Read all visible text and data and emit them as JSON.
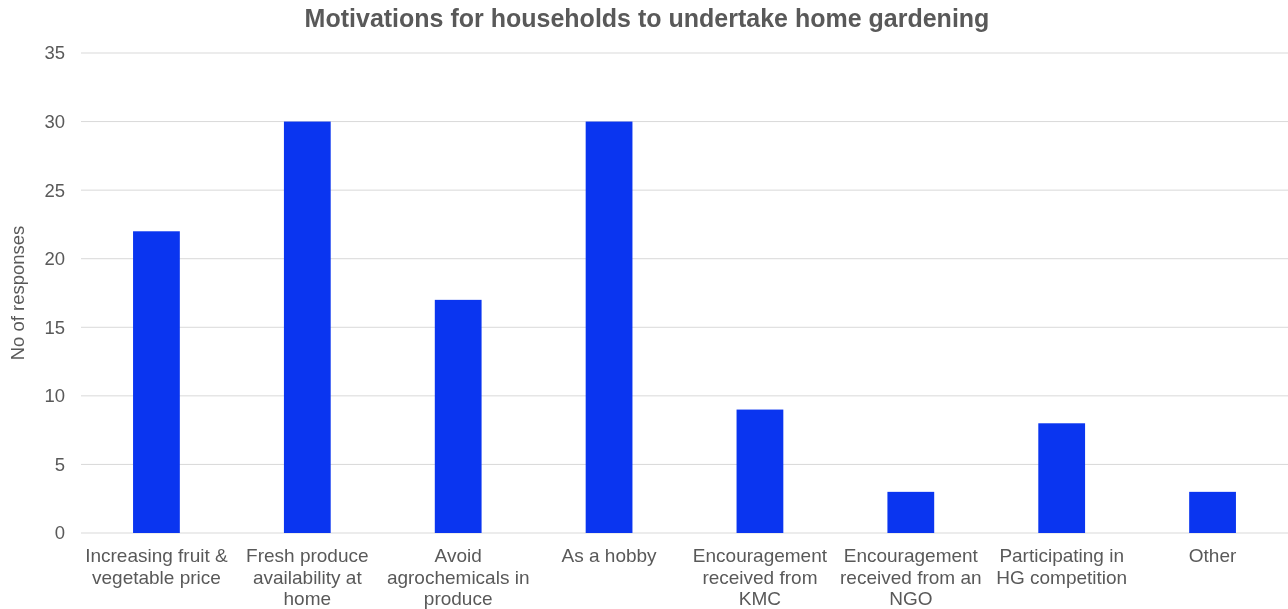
{
  "chart_data": {
    "type": "bar",
    "title": "Motivations for households to undertake home gardening",
    "ylabel": "No of responses",
    "categories": [
      "Increasing fruit & vegetable price",
      "Fresh produce availability at home",
      "Avoid agrochemicals in produce",
      "As a hobby",
      "Encouragement received from KMC",
      "Encouragement received from an NGO",
      "Participating in HG competition",
      "Other"
    ],
    "values": [
      22,
      30,
      17,
      30,
      9,
      3,
      8,
      3
    ],
    "color": "#0a35f0",
    "ylim": [
      0,
      35
    ],
    "yticks": [
      0,
      5,
      10,
      15,
      20,
      25,
      30,
      35
    ],
    "grid": "y"
  }
}
